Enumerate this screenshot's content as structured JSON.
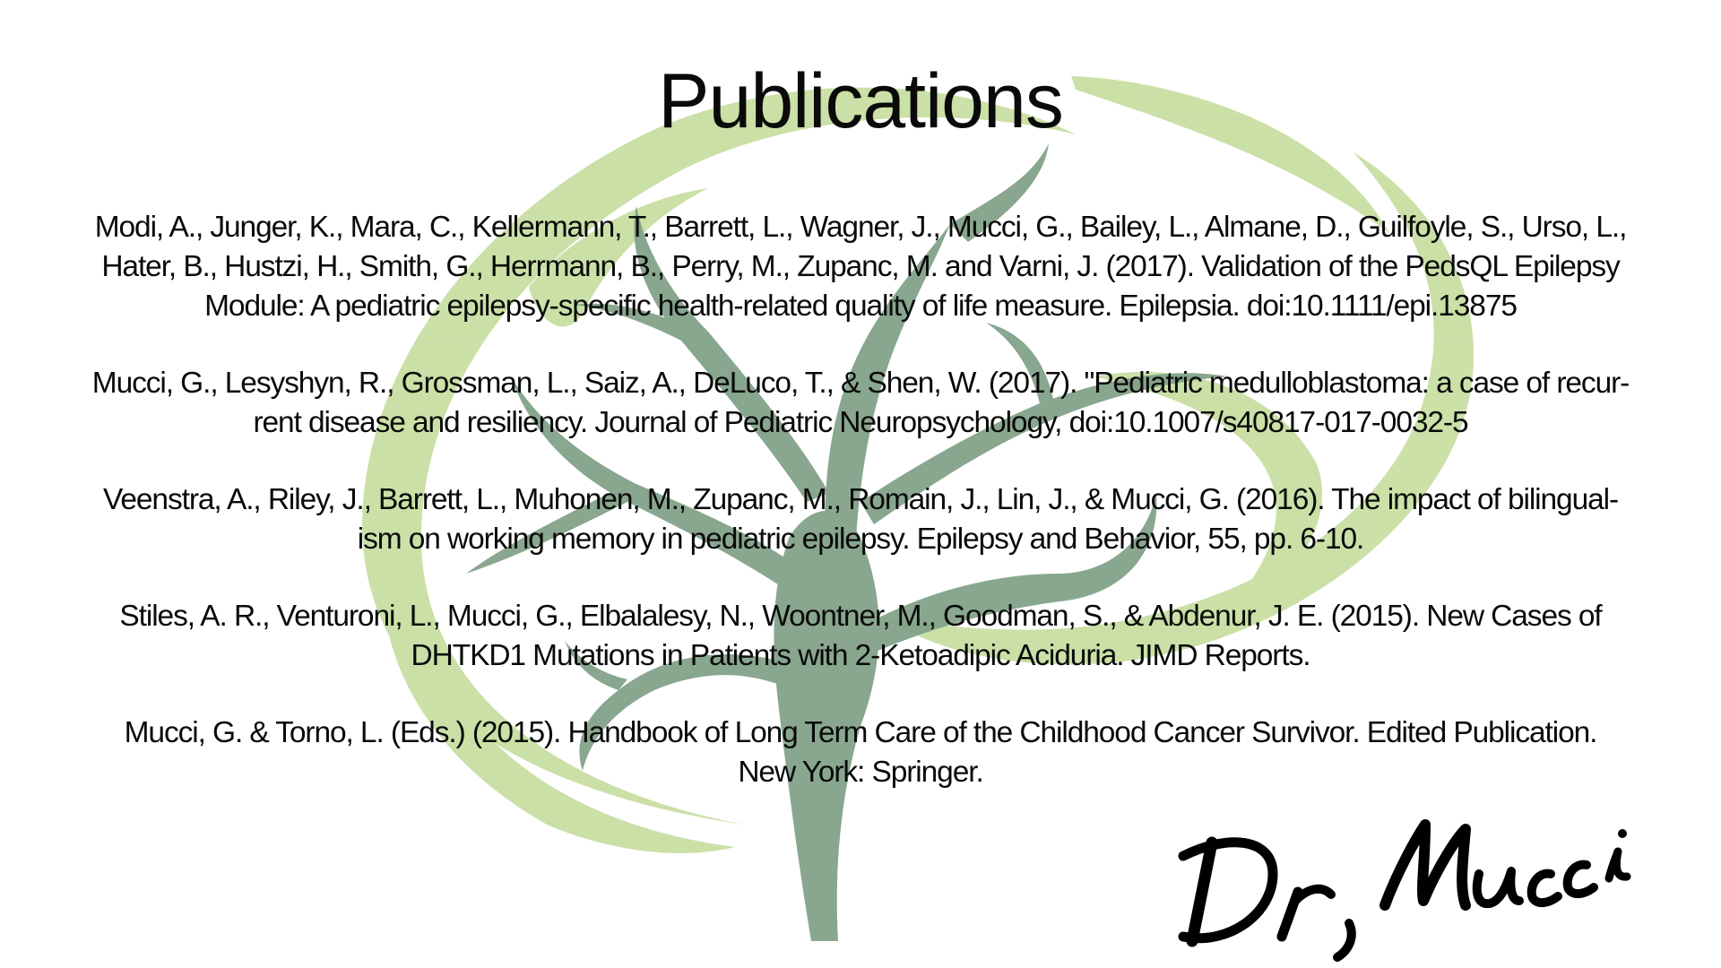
{
  "page": {
    "title": "Publications",
    "signature_text": "Dr, Mucci"
  },
  "publications": [
    {
      "lines": [
        "Modi, A., Junger, K., Mara, C., Kellermann, T., Barrett, L., Wagner, J., Mucci, G., Bailey, L., Almane, D., Guilfoyle, S., Urso, L.,",
        "Hater, B., Hustzi, H., Smith, G., Herrmann, B., Perry, M., Zupanc, M. and Varni, J. (2017). Validation of the PedsQL Epilepsy",
        "Module: A pediatric epilepsy-specific health-related quality of life measure. Epilepsia. doi:10.1111/epi.13875"
      ]
    },
    {
      "lines": [
        "Mucci, G., Lesyshyn, R., Grossman, L., Saiz, A., DeLuco, T., & Shen, W. (2017). \"Pediatric medulloblastoma: a case of recur-",
        "rent disease and resiliency. Journal of Pediatric Neuropsychology, doi:10.1007/s40817-017-0032-5"
      ]
    },
    {
      "lines": [
        "Veenstra, A., Riley, J., Barrett, L., Muhonen, M., Zupanc, M., Romain, J., Lin, J., & Mucci, G. (2016). The impact of bilingual-",
        "ism on working memory in pediatric epilepsy. Epilepsy and Behavior, 55, pp. 6-10."
      ]
    },
    {
      "lines": [
        "Stiles, A. R., Venturoni, L., Mucci, G., Elbalalesy, N., Woontner, M., Goodman, S., & Abdenur, J. E. (2015). New Cases of",
        "DHTKD1 Mutations in Patients with 2-Ketoadipic Aciduria. JIMD Reports."
      ]
    },
    {
      "lines": [
        "Mucci, G. & Torno, L. (Eds.) (2015). Handbook of Long Term Care of the Childhood Cancer Survivor. Edited Publication.",
        "New York: Springer."
      ]
    }
  ],
  "decor": {
    "icon": "tree-logo-icon",
    "leaf_color": "#c3dc9c",
    "trunk_color": "#7d9d83",
    "text_color": "#0a0a0a"
  }
}
